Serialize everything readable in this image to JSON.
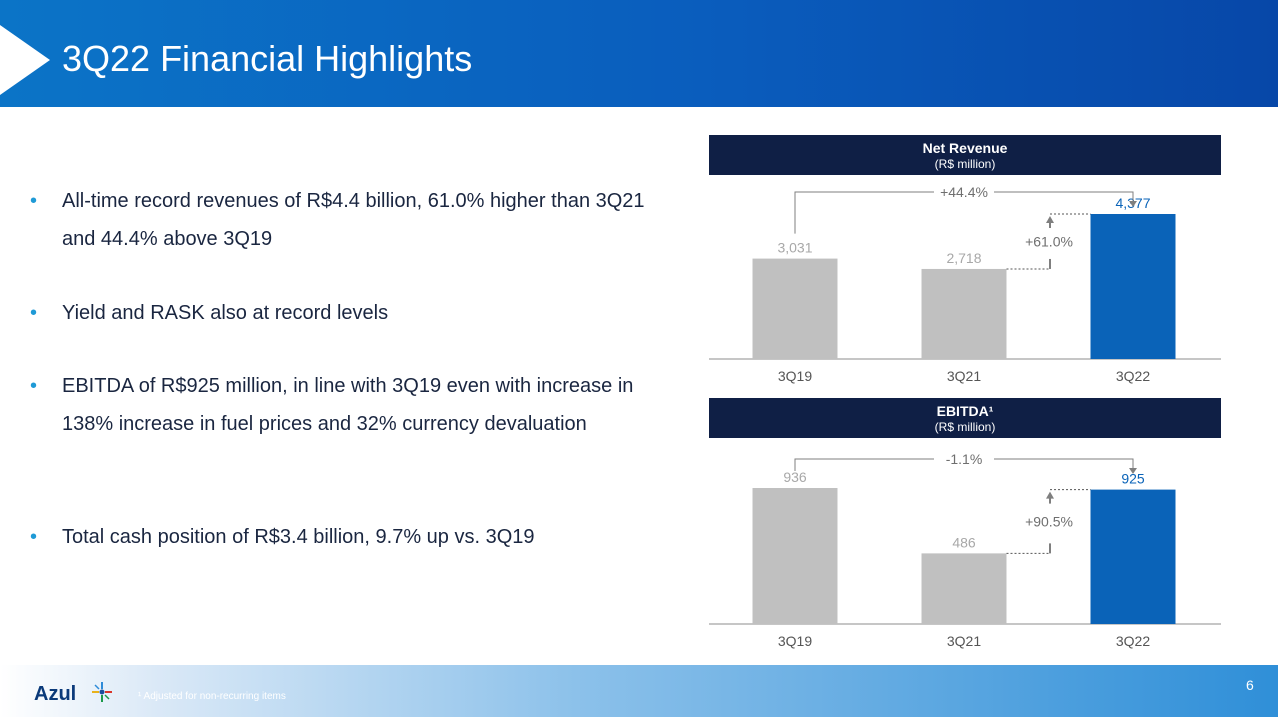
{
  "header": {
    "title": "3Q22 Financial Highlights"
  },
  "bullets": [
    "All-time record revenues of R$4.4 billion, 61.0% higher than 3Q21 and 44.4% above 3Q19",
    "Yield and RASK also at record levels",
    "EBITDA of R$925 million, in line with 3Q19 even with increase in 138% increase in fuel prices and 32% currency devaluation",
    "Total cash position of R$3.4 billion, 9.7% up vs. 3Q19"
  ],
  "bullet_marker": "•",
  "chart_data": [
    {
      "type": "bar",
      "title": "Net Revenue",
      "subtitle": "(R$ million)",
      "categories": [
        "3Q19",
        "3Q21",
        "3Q22"
      ],
      "values": [
        3031,
        2718,
        4377
      ],
      "value_labels": [
        "3,031",
        "2,718",
        "4,377"
      ],
      "ylim": [
        0,
        4800
      ],
      "annotations": {
        "overall_change": "+44.4%",
        "yoy_change": "+61.0%"
      },
      "bar_colors": [
        "#c0c0c0",
        "#c0c0c0",
        "#0a63b8"
      ],
      "label_colors": [
        "#a8a8a8",
        "#a8a8a8",
        "#0a63b8"
      ]
    },
    {
      "type": "bar",
      "title": "EBITDA¹",
      "subtitle": "(R$ million)",
      "categories": [
        "3Q19",
        "3Q21",
        "3Q22"
      ],
      "values": [
        936,
        486,
        925
      ],
      "value_labels": [
        "936",
        "486",
        "925"
      ],
      "ylim": [
        0,
        1000
      ],
      "annotations": {
        "overall_change": "-1.1%",
        "yoy_change": "+90.5%"
      },
      "bar_colors": [
        "#c0c0c0",
        "#c0c0c0",
        "#0a63b8"
      ],
      "label_colors": [
        "#a8a8a8",
        "#a8a8a8",
        "#0a63b8"
      ]
    }
  ],
  "footer": {
    "logo": "Azul",
    "footnote": "¹ Adjusted for non-recurring items",
    "page_number": "6"
  }
}
